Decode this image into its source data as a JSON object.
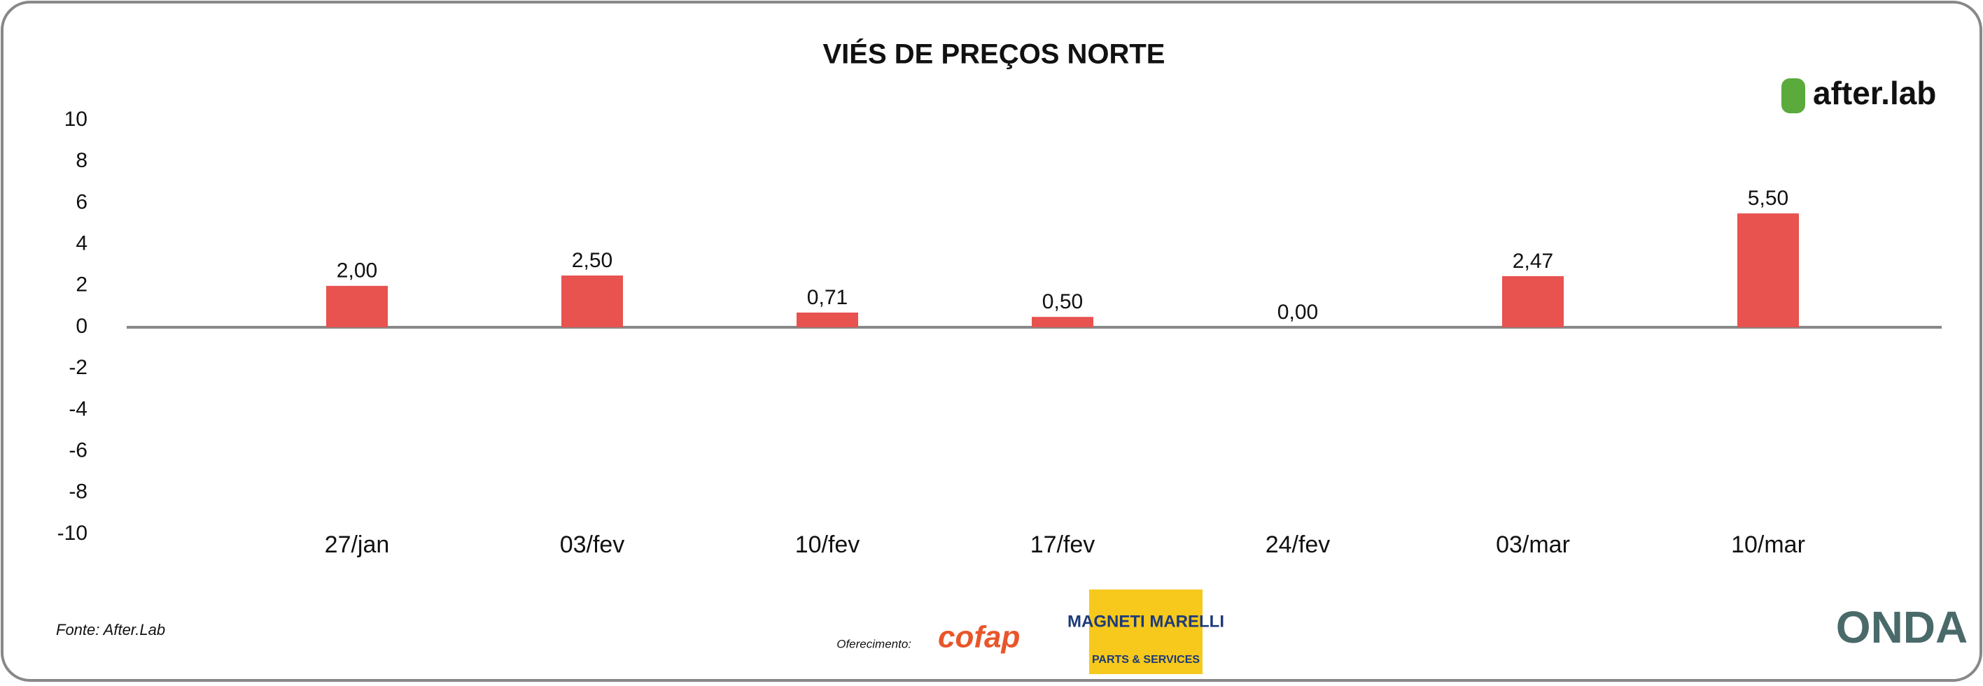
{
  "chart_data": {
    "type": "bar",
    "title": "VIÉS DE PREÇOS NORTE",
    "categories": [
      "27/jan",
      "03/fev",
      "10/fev",
      "17/fev",
      "24/fev",
      "03/mar",
      "10/mar"
    ],
    "values": [
      2.0,
      2.5,
      0.71,
      0.5,
      0.0,
      2.47,
      5.5
    ],
    "value_labels": [
      "2,00",
      "2,50",
      "0,71",
      "0,50",
      "0,00",
      "2,47",
      "5,50"
    ],
    "color": "#e8524f",
    "ylim": [
      -10,
      10
    ],
    "yticks": [
      -10,
      -8,
      -6,
      -4,
      -2,
      0,
      2,
      4,
      6,
      8,
      10
    ],
    "grid": false,
    "source": "Fonte: After.Lab"
  },
  "logos": {
    "brand": "after.lab",
    "offered_by": "Oferecimento:",
    "sponsor1": "cofap",
    "sponsor2": "MAGNETI MARELLI",
    "sponsor2_sub": "PARTS & SERVICES",
    "partner": "ONDA"
  }
}
